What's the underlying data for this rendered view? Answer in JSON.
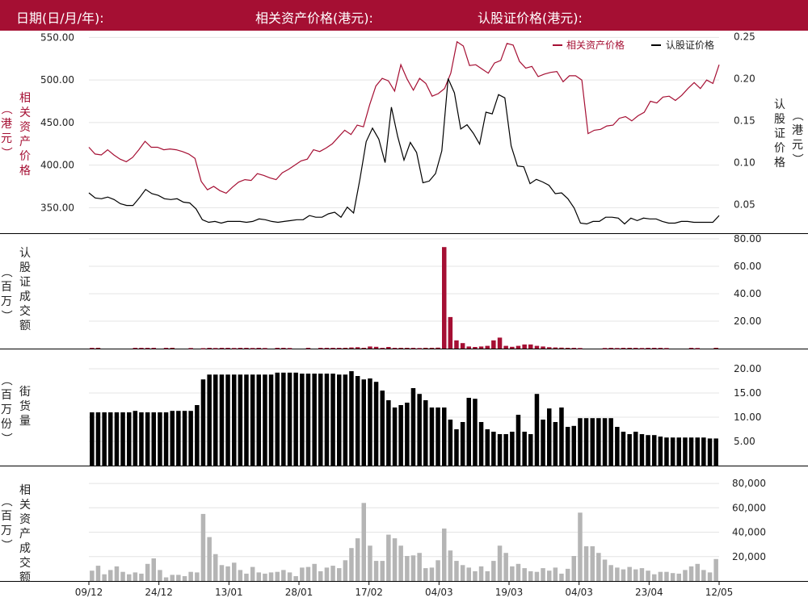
{
  "header": {
    "date_label": "日期(日/月/年):",
    "underlying_label": "相关资产价格(港元):",
    "warrant_label": "认股证价格(港元):"
  },
  "colors": {
    "brand": "#a50f33",
    "underlying": "#a50f33",
    "warrant": "#000000",
    "turnover": "#a50f33",
    "outstanding": "#000000",
    "underlying_turnover": "#b5b5b5"
  },
  "x_labels": [
    "09/12",
    "24/12",
    "13/01",
    "28/01",
    "17/02",
    "04/03",
    "19/03",
    "04/03",
    "23/04",
    "12/05"
  ],
  "chart_data": [
    {
      "type": "line",
      "id": "price",
      "series": [
        {
          "name": "相关资产价格",
          "axis": "left",
          "values": [
            421,
            413,
            412,
            418,
            412,
            407,
            404,
            409,
            418,
            428,
            421,
            421,
            418,
            419,
            418,
            416,
            413,
            408,
            381,
            371,
            375,
            370,
            367,
            374,
            380,
            383,
            382,
            390,
            388,
            385,
            383,
            391,
            395,
            400,
            405,
            407,
            418,
            416,
            420,
            425,
            433,
            441,
            436,
            447,
            445,
            471,
            493,
            502,
            499,
            487,
            518,
            501,
            488,
            502,
            496,
            481,
            484,
            490,
            508,
            545,
            540,
            517,
            518,
            513,
            508,
            520,
            523,
            543,
            541,
            522,
            514,
            516,
            504,
            507,
            509,
            510,
            498,
            505,
            505,
            500,
            437,
            441,
            442,
            446,
            447,
            455,
            457,
            452,
            458,
            462,
            475,
            473,
            480,
            481,
            476,
            482,
            490,
            497,
            490,
            500,
            496,
            518
          ]
        },
        {
          "name": "认股证价格",
          "axis": "right",
          "values": [
            0.064,
            0.058,
            0.057,
            0.059,
            0.056,
            0.051,
            0.049,
            0.049,
            0.058,
            0.068,
            0.063,
            0.061,
            0.057,
            0.056,
            0.057,
            0.053,
            0.052,
            0.045,
            0.032,
            0.029,
            0.03,
            0.028,
            0.03,
            0.03,
            0.03,
            0.029,
            0.03,
            0.033,
            0.032,
            0.03,
            0.029,
            0.03,
            0.031,
            0.032,
            0.032,
            0.037,
            0.035,
            0.035,
            0.039,
            0.041,
            0.035,
            0.047,
            0.04,
            0.08,
            0.125,
            0.141,
            0.128,
            0.1,
            0.166,
            0.131,
            0.103,
            0.124,
            0.112,
            0.076,
            0.078,
            0.087,
            0.114,
            0.2,
            0.183,
            0.14,
            0.145,
            0.135,
            0.122,
            0.16,
            0.158,
            0.181,
            0.177,
            0.12,
            0.096,
            0.095,
            0.075,
            0.08,
            0.077,
            0.073,
            0.063,
            0.064,
            0.057,
            0.046,
            0.028,
            0.027,
            0.03,
            0.03,
            0.035,
            0.035,
            0.034,
            0.027,
            0.034,
            0.031,
            0.034,
            0.033,
            0.033,
            0.03,
            0.028,
            0.028,
            0.03,
            0.03,
            0.029,
            0.029,
            0.029,
            0.029,
            0.037
          ]
        }
      ],
      "left_ticks": [
        "550.00",
        "500.00",
        "450.00",
        "400.00",
        "350.00"
      ],
      "right_ticks": [
        "0.25",
        "0.20",
        "0.15",
        "0.10",
        "0.05"
      ],
      "left_ylim": [
        320,
        558
      ],
      "right_ylim": [
        0.016,
        0.257
      ],
      "ylabel_left": "相关资产价格（港元）",
      "ylabel_right": "认股证价格（港元）",
      "legend": [
        "相关资产价格",
        "认股证价格"
      ],
      "legend_position": "top-right",
      "grid": true
    },
    {
      "type": "bar",
      "id": "warrant_turnover",
      "series": [
        {
          "name": "认股证成交额",
          "values": [
            0.5,
            0.6,
            0,
            0,
            0,
            0,
            0,
            0.5,
            0.5,
            0.5,
            0.5,
            0,
            0.5,
            0.6,
            0,
            0,
            0.4,
            0,
            0.3,
            0.5,
            0.4,
            0.5,
            0.5,
            0.4,
            0.5,
            0.5,
            0.4,
            0.5,
            0.4,
            0,
            0.5,
            0.5,
            0.4,
            0,
            0,
            0.5,
            0,
            0.5,
            0.5,
            0.5,
            0.5,
            0.6,
            0.8,
            1,
            0.6,
            1.5,
            1.3,
            0.5,
            1.2,
            0.5,
            0.6,
            0.6,
            0.5,
            0.4,
            0.6,
            0.6,
            0.7,
            74,
            23,
            6,
            4,
            1.5,
            1.2,
            1.5,
            2,
            6,
            8,
            2,
            1.3,
            2,
            3,
            3,
            2,
            1.5,
            1,
            0.8,
            0.7,
            0.6,
            0.5,
            0.4,
            0,
            0,
            0,
            0.4,
            0.5,
            0.4,
            0.5,
            0.6,
            0.5,
            0.4,
            0.5,
            0.5,
            0.5,
            0.4,
            0,
            0,
            0,
            0.5,
            0.4,
            0,
            0,
            0.6
          ]
        }
      ],
      "ticks": [
        "80.00",
        "60.00",
        "40.00",
        "20.00"
      ],
      "ylim": [
        0,
        80
      ],
      "ylabel": "认股证成交额（百万）",
      "grid": true
    },
    {
      "type": "bar",
      "id": "outstanding",
      "series": [
        {
          "name": "街货量",
          "values": [
            11.0,
            11.0,
            11.0,
            11.0,
            11.0,
            11.0,
            11.0,
            11.3,
            11.0,
            11.0,
            11.0,
            11.0,
            11.0,
            11.3,
            11.3,
            11.3,
            11.3,
            12.5,
            17.8,
            18.8,
            18.8,
            18.8,
            18.8,
            18.8,
            18.8,
            18.8,
            18.8,
            18.8,
            18.8,
            18.8,
            19.2,
            19.2,
            19.2,
            19.2,
            19.0,
            19.0,
            19.0,
            19.0,
            19.0,
            19.0,
            18.8,
            18.8,
            19.5,
            18.5,
            17.8,
            18.0,
            17.3,
            15.5,
            13.5,
            12.0,
            12.5,
            13.0,
            16.0,
            14.8,
            13.5,
            12.0,
            12.0,
            12.0,
            9.5,
            7.5,
            9.0,
            14.0,
            13.8,
            9.0,
            7.5,
            7.0,
            6.5,
            6.5,
            7.0,
            10.5,
            7.0,
            6.5,
            14.8,
            9.5,
            11.8,
            9.0,
            12.0,
            8.0,
            8.2,
            9.8,
            9.8,
            9.8,
            9.8,
            9.8,
            9.8,
            8.0,
            7.0,
            6.5,
            7.0,
            6.5,
            6.3,
            6.3,
            6.0,
            5.8,
            5.8,
            5.8,
            5.8,
            5.8,
            5.8,
            5.8,
            5.6,
            5.6
          ]
        }
      ],
      "ticks": [
        "20.00",
        "15.00",
        "10.00",
        "5.00"
      ],
      "ylim": [
        0,
        21.5
      ],
      "ylabel": "街货量（百万份）",
      "grid": true
    },
    {
      "type": "bar",
      "id": "underlying_turnover",
      "series": [
        {
          "name": "相关资产成交额",
          "values": [
            8500,
            12500,
            5500,
            9000,
            12000,
            7500,
            5500,
            7000,
            6000,
            14000,
            18500,
            9000,
            3000,
            5000,
            5000,
            4000,
            7500,
            7000,
            55000,
            36000,
            22000,
            13000,
            12000,
            15000,
            9000,
            6000,
            11500,
            7000,
            6000,
            7000,
            7500,
            9000,
            7000,
            4000,
            11000,
            11500,
            14000,
            8000,
            11000,
            12500,
            10500,
            17000,
            27000,
            35000,
            64000,
            29000,
            16500,
            16500,
            38000,
            35000,
            29000,
            20500,
            21000,
            23000,
            10500,
            11000,
            17000,
            43000,
            25000,
            16500,
            13000,
            11000,
            8000,
            12000,
            8000,
            16500,
            29000,
            23000,
            12000,
            14000,
            10500,
            8000,
            7500,
            10500,
            8500,
            11000,
            6000,
            10000,
            20500,
            56000,
            28500,
            28500,
            23000,
            17500,
            13000,
            11000,
            9500,
            11500,
            9500,
            10500,
            8500,
            5500,
            7500,
            7500,
            6500,
            6000,
            9000,
            12000,
            14000,
            9000,
            7000,
            18000
          ]
        }
      ],
      "ticks": [
        "80,000",
        "60,000",
        "40,000",
        "20,000"
      ],
      "ylim": [
        0,
        86000
      ],
      "ylabel": "相关资产成交额（百万）",
      "grid": true
    }
  ]
}
